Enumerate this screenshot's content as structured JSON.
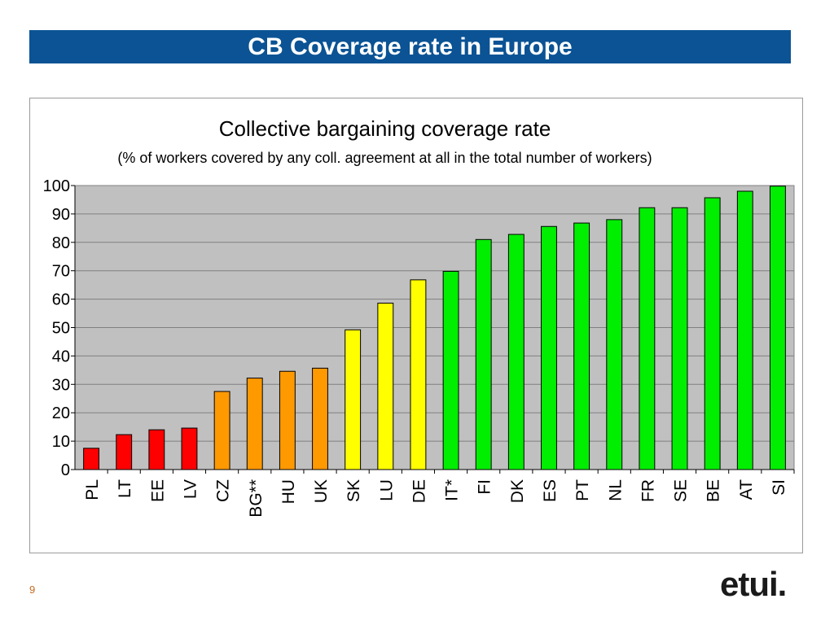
{
  "slide": {
    "title": "CB Coverage rate in Europe",
    "page_number": "9",
    "logo_text": "etui."
  },
  "colors": {
    "title_bar": "#0b5394",
    "plot_background": "#c0c0c0",
    "red": "#ff0000",
    "orange": "#ff9900",
    "yellow": "#ffff00",
    "green": "#00ee00"
  },
  "chart_data": {
    "type": "bar",
    "title": "Collective bargaining coverage rate",
    "subtitle": "(% of workers covered by any coll. agreement at all in the total number of workers)",
    "xlabel": "",
    "ylabel": "",
    "ylim": [
      0,
      100
    ],
    "yticks": [
      0,
      10,
      20,
      30,
      40,
      50,
      60,
      70,
      80,
      90,
      100
    ],
    "grid": true,
    "legend": "none",
    "categories": [
      "PL",
      "LT",
      "EE",
      "LV",
      "CZ",
      "BG**",
      "HU",
      "UK",
      "SK",
      "LU",
      "DE",
      "IT*",
      "FI",
      "DK",
      "ES",
      "PT",
      "NL",
      "FR",
      "SE",
      "BE",
      "AT",
      "SI"
    ],
    "values": [
      7.5,
      12.3,
      14.0,
      14.6,
      27.5,
      32.2,
      34.6,
      35.7,
      49.2,
      58.6,
      66.8,
      69.8,
      81.0,
      82.8,
      85.6,
      86.8,
      88.0,
      92.2,
      92.2,
      95.7,
      98.0,
      99.8
    ],
    "bar_colors": [
      "red",
      "red",
      "red",
      "red",
      "orange",
      "orange",
      "orange",
      "orange",
      "yellow",
      "yellow",
      "yellow",
      "green",
      "green",
      "green",
      "green",
      "green",
      "green",
      "green",
      "green",
      "green",
      "green",
      "green"
    ]
  }
}
